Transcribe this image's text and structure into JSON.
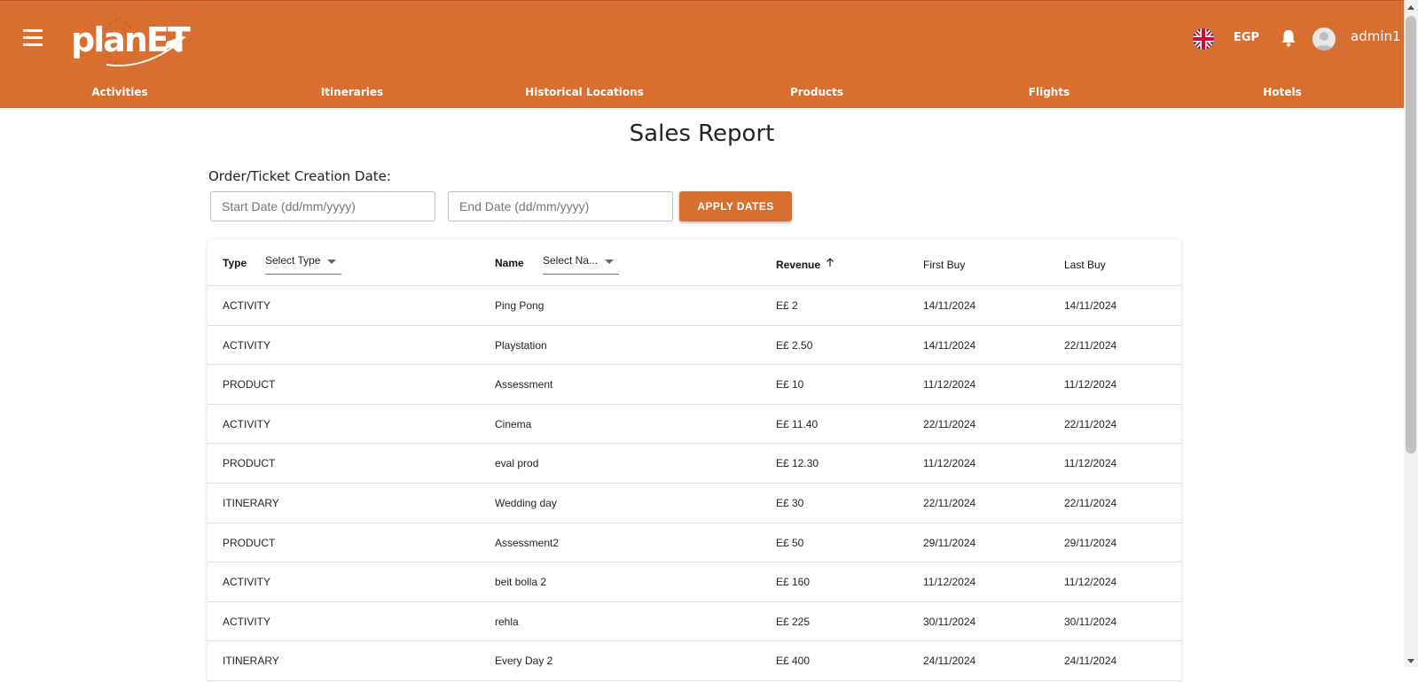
{
  "header": {
    "logo_text": "planET",
    "currency": "EGP",
    "username": "admin1",
    "brand_color": "#d86e30"
  },
  "nav": {
    "items": [
      {
        "label": "Activities"
      },
      {
        "label": "Itineraries"
      },
      {
        "label": "Historical Locations"
      },
      {
        "label": "Products"
      },
      {
        "label": "Flights"
      },
      {
        "label": "Hotels"
      }
    ]
  },
  "page": {
    "title": "Sales Report",
    "date_label": "Order/Ticket Creation Date:",
    "start_placeholder": "Start Date (dd/mm/yyyy)",
    "end_placeholder": "End Date (dd/mm/yyyy)",
    "apply_label": "APPLY DATES"
  },
  "table": {
    "headers": {
      "type": "Type",
      "type_filter": "Select Type",
      "name": "Name",
      "name_filter": "Select Na...",
      "revenue": "Revenue",
      "first_buy": "First Buy",
      "last_buy": "Last Buy"
    },
    "rows": [
      {
        "type": "ACTIVITY",
        "name": "Ping Pong",
        "revenue": "E£ 2",
        "first": "14/11/2024",
        "last": "14/11/2024"
      },
      {
        "type": "ACTIVITY",
        "name": "Playstation",
        "revenue": "E£ 2.50",
        "first": "14/11/2024",
        "last": "22/11/2024"
      },
      {
        "type": "PRODUCT",
        "name": "Assessment",
        "revenue": "E£ 10",
        "first": "11/12/2024",
        "last": "11/12/2024"
      },
      {
        "type": "ACTIVITY",
        "name": "Cinema",
        "revenue": "E£ 11.40",
        "first": "22/11/2024",
        "last": "22/11/2024"
      },
      {
        "type": "PRODUCT",
        "name": "eval prod",
        "revenue": "E£ 12.30",
        "first": "11/12/2024",
        "last": "11/12/2024"
      },
      {
        "type": "ITINERARY",
        "name": "Wedding day",
        "revenue": "E£ 30",
        "first": "22/11/2024",
        "last": "22/11/2024"
      },
      {
        "type": "PRODUCT",
        "name": "Assessment2",
        "revenue": "E£ 50",
        "first": "29/11/2024",
        "last": "29/11/2024"
      },
      {
        "type": "ACTIVITY",
        "name": "beit bolla 2",
        "revenue": "E£ 160",
        "first": "11/12/2024",
        "last": "11/12/2024"
      },
      {
        "type": "ACTIVITY",
        "name": "rehla",
        "revenue": "E£ 225",
        "first": "30/11/2024",
        "last": "30/11/2024"
      },
      {
        "type": "ITINERARY",
        "name": "Every Day 2",
        "revenue": "E£ 400",
        "first": "24/11/2024",
        "last": "24/11/2024"
      }
    ]
  }
}
